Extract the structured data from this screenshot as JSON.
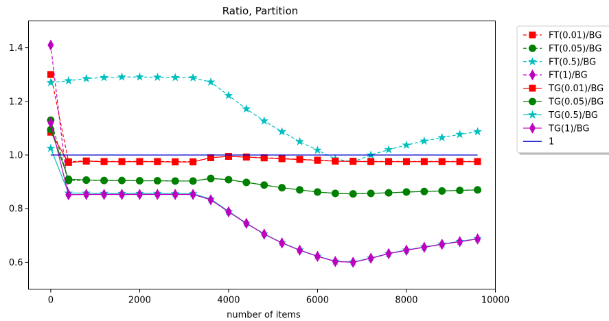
{
  "chart_data": {
    "type": "line",
    "title": "Ratio, Partition",
    "xlabel": "number of items",
    "ylabel": "",
    "xlim": [
      -500,
      10000
    ],
    "ylim": [
      0.5,
      1.5
    ],
    "xticks": [
      0,
      2000,
      4000,
      6000,
      8000,
      10000
    ],
    "yticks": [
      0.6,
      0.8,
      1.0,
      1.2,
      1.4
    ],
    "xtick_labels": [
      "0",
      "2000",
      "4000",
      "6000",
      "8000",
      "10000"
    ],
    "ytick_labels": [
      "0.6",
      "0.8",
      "1.0",
      "1.2",
      "1.4"
    ],
    "grid": false,
    "legend_position": "outside-right",
    "x": [
      0,
      400,
      800,
      1200,
      1600,
      2000,
      2400,
      2800,
      3200,
      3600,
      4000,
      4400,
      4800,
      5200,
      5600,
      6000,
      6400,
      6800,
      7200,
      7600,
      8000,
      8400,
      8800,
      9200,
      9600
    ],
    "series": [
      {
        "name": "FT(0.01)/BG",
        "color": "#ff0000",
        "linestyle": "dashed",
        "marker": "square",
        "values": [
          1.3,
          0.975,
          0.978,
          0.976,
          0.976,
          0.976,
          0.976,
          0.975,
          0.975,
          0.99,
          0.995,
          0.993,
          0.99,
          0.987,
          0.984,
          0.981,
          0.978,
          0.977,
          0.976,
          0.976,
          0.976,
          0.976,
          0.976,
          0.976,
          0.976
        ]
      },
      {
        "name": "FT(0.05)/BG",
        "color": "#008000",
        "linestyle": "dashed",
        "marker": "circle",
        "values": [
          1.13,
          0.905,
          0.906,
          0.905,
          0.905,
          0.904,
          0.904,
          0.903,
          0.903,
          0.912,
          0.908,
          0.898,
          0.888,
          0.878,
          0.87,
          0.862,
          0.857,
          0.855,
          0.857,
          0.859,
          0.862,
          0.864,
          0.866,
          0.868,
          0.87
        ]
      },
      {
        "name": "FT(0.5)/BG",
        "color": "#00bfbf",
        "linestyle": "dashed",
        "marker": "star",
        "values": [
          1.27,
          1.277,
          1.285,
          1.289,
          1.291,
          1.291,
          1.29,
          1.289,
          1.288,
          1.272,
          1.222,
          1.172,
          1.127,
          1.087,
          1.05,
          1.018,
          0.985,
          0.975,
          1.0,
          1.02,
          1.037,
          1.052,
          1.065,
          1.077,
          1.087
        ]
      },
      {
        "name": "FT(1)/BG",
        "color": "#bf00bf",
        "linestyle": "dashed",
        "marker": "diamond",
        "values": [
          1.41,
          0.852,
          0.853,
          0.853,
          0.853,
          0.853,
          0.853,
          0.853,
          0.853,
          0.833,
          0.788,
          0.745,
          0.705,
          0.672,
          0.645,
          0.622,
          0.603,
          0.6,
          0.615,
          0.632,
          0.645,
          0.656,
          0.667,
          0.677,
          0.687
        ]
      },
      {
        "name": "TG(0.01)/BG",
        "color": "#ff0000",
        "linestyle": "solid",
        "marker": "square",
        "values": [
          1.085,
          0.972,
          0.977,
          0.975,
          0.975,
          0.975,
          0.975,
          0.974,
          0.974,
          0.99,
          0.995,
          0.992,
          0.989,
          0.986,
          0.983,
          0.98,
          0.977,
          0.976,
          0.975,
          0.975,
          0.975,
          0.975,
          0.975,
          0.975,
          0.975
        ]
      },
      {
        "name": "TG(0.05)/BG",
        "color": "#008000",
        "linestyle": "solid",
        "marker": "circle",
        "values": [
          1.095,
          0.91,
          0.907,
          0.905,
          0.905,
          0.904,
          0.904,
          0.903,
          0.903,
          0.913,
          0.908,
          0.898,
          0.888,
          0.878,
          0.87,
          0.862,
          0.857,
          0.855,
          0.857,
          0.859,
          0.862,
          0.864,
          0.866,
          0.868,
          0.87
        ]
      },
      {
        "name": "TG(0.5)/BG",
        "color": "#00bfbf",
        "linestyle": "solid",
        "marker": "star",
        "values": [
          1.025,
          0.858,
          0.858,
          0.857,
          0.857,
          0.857,
          0.857,
          0.856,
          0.856,
          0.836,
          0.79,
          0.746,
          0.706,
          0.673,
          0.646,
          0.623,
          0.604,
          0.601,
          0.616,
          0.633,
          0.646,
          0.657,
          0.668,
          0.678,
          0.688
        ]
      },
      {
        "name": "TG(1)/BG",
        "color": "#bf00bf",
        "linestyle": "solid",
        "marker": "diamond",
        "values": [
          1.12,
          0.852,
          0.853,
          0.853,
          0.853,
          0.853,
          0.853,
          0.853,
          0.853,
          0.833,
          0.788,
          0.745,
          0.705,
          0.672,
          0.645,
          0.622,
          0.603,
          0.6,
          0.615,
          0.632,
          0.645,
          0.656,
          0.667,
          0.677,
          0.687
        ]
      },
      {
        "name": "1",
        "color": "#0000cc",
        "linestyle": "solid",
        "marker": "none",
        "x": [
          0,
          9600
        ],
        "values": [
          1.0,
          1.0
        ]
      }
    ]
  }
}
